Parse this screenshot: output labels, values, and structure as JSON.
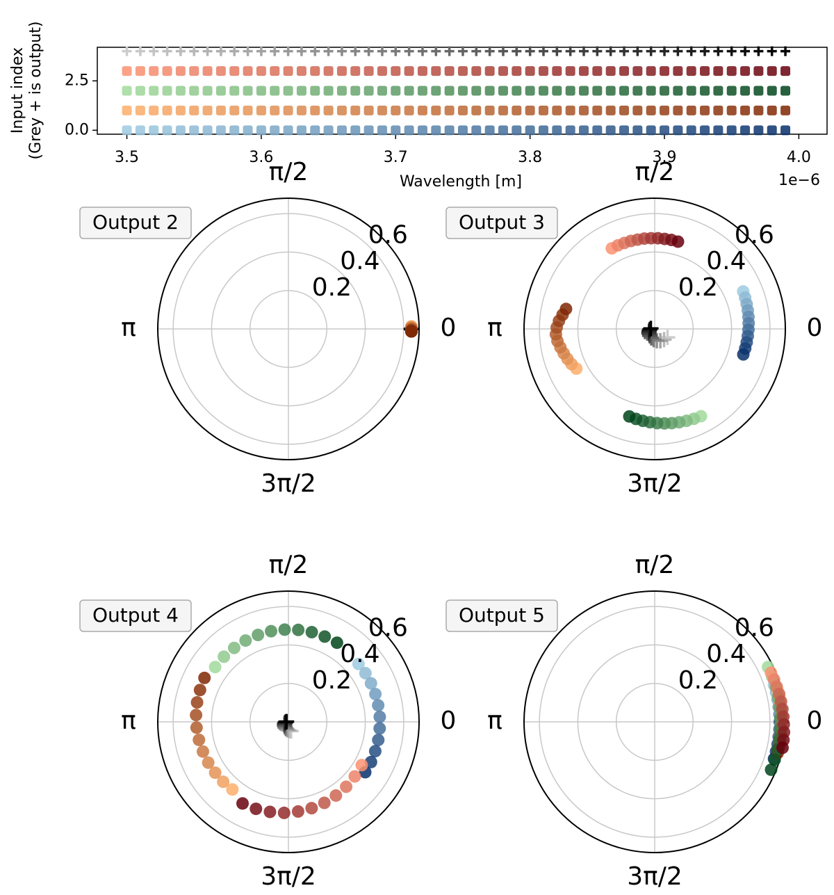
{
  "chart_data": [
    {
      "type": "scatter",
      "ylabel": [
        "Input index",
        "(Grey + is output)"
      ],
      "xlabel": "Wavelength [m]",
      "x_offset_label": "1e−6",
      "x": [
        3.5,
        3.51,
        3.52,
        3.53,
        3.54,
        3.55,
        3.56,
        3.57,
        3.58,
        3.59,
        3.6,
        3.61,
        3.62,
        3.63,
        3.64,
        3.65,
        3.66,
        3.67,
        3.68,
        3.69,
        3.7,
        3.71,
        3.72,
        3.73,
        3.74,
        3.75,
        3.76,
        3.77,
        3.78,
        3.79,
        3.8,
        3.81,
        3.82,
        3.83,
        3.84,
        3.85,
        3.86,
        3.87,
        3.88,
        3.89,
        3.9,
        3.91,
        3.92,
        3.93,
        3.94,
        3.95,
        3.96,
        3.97,
        3.98,
        3.99
      ],
      "xlim": [
        3.478,
        4.021
      ],
      "ylim": [
        -0.2,
        4.2
      ],
      "xticks": [
        3.5,
        3.6,
        3.7,
        3.8,
        3.9,
        {
          "value": 4,
          "label": "4.0"
        }
      ],
      "yticks": [
        {
          "value": 0,
          "label": "0.0"
        },
        2.5
      ],
      "series": [
        {
          "color": [
            "#9ecae1",
            "#08306b"
          ],
          "marker": "square",
          "values": [
            0,
            0,
            0,
            0,
            0,
            0,
            0,
            0,
            0,
            0,
            0,
            0,
            0,
            0,
            0,
            0,
            0,
            0,
            0,
            0,
            0,
            0,
            0,
            0,
            0,
            0,
            0,
            0,
            0,
            0,
            0,
            0,
            0,
            0,
            0,
            0,
            0,
            0,
            0,
            0,
            0,
            0,
            0,
            0,
            0,
            0,
            0,
            0,
            0,
            0
          ]
        },
        {
          "color": [
            "#fdae6b",
            "#7f2704"
          ],
          "marker": "square",
          "values": [
            1,
            1,
            1,
            1,
            1,
            1,
            1,
            1,
            1,
            1,
            1,
            1,
            1,
            1,
            1,
            1,
            1,
            1,
            1,
            1,
            1,
            1,
            1,
            1,
            1,
            1,
            1,
            1,
            1,
            1,
            1,
            1,
            1,
            1,
            1,
            1,
            1,
            1,
            1,
            1,
            1,
            1,
            1,
            1,
            1,
            1,
            1,
            1,
            1,
            1
          ]
        },
        {
          "color": [
            "#a1d99b",
            "#00441b"
          ],
          "marker": "square",
          "values": [
            2,
            2,
            2,
            2,
            2,
            2,
            2,
            2,
            2,
            2,
            2,
            2,
            2,
            2,
            2,
            2,
            2,
            2,
            2,
            2,
            2,
            2,
            2,
            2,
            2,
            2,
            2,
            2,
            2,
            2,
            2,
            2,
            2,
            2,
            2,
            2,
            2,
            2,
            2,
            2,
            2,
            2,
            2,
            2,
            2,
            2,
            2,
            2,
            2,
            2
          ]
        },
        {
          "color": [
            "#fc9272",
            "#67000d"
          ],
          "marker": "square",
          "values": [
            3,
            3,
            3,
            3,
            3,
            3,
            3,
            3,
            3,
            3,
            3,
            3,
            3,
            3,
            3,
            3,
            3,
            3,
            3,
            3,
            3,
            3,
            3,
            3,
            3,
            3,
            3,
            3,
            3,
            3,
            3,
            3,
            3,
            3,
            3,
            3,
            3,
            3,
            3,
            3,
            3,
            3,
            3,
            3,
            3,
            3,
            3,
            3,
            3,
            3
          ]
        },
        {
          "color": [
            "#cccccc",
            "#000000"
          ],
          "marker": "plus",
          "values": [
            4,
            4,
            4,
            4,
            4,
            4,
            4,
            4,
            4,
            4,
            4,
            4,
            4,
            4,
            4,
            4,
            4,
            4,
            4,
            4,
            4,
            4,
            4,
            4,
            4,
            4,
            4,
            4,
            4,
            4,
            4,
            4,
            4,
            4,
            4,
            4,
            4,
            4,
            4,
            4,
            4,
            4,
            4,
            4,
            4,
            4,
            4,
            4,
            4,
            4
          ]
        }
      ]
    },
    {
      "type": "polar",
      "title": "Output 2",
      "rlim": [
        0,
        0.68
      ],
      "rticks": [
        0.2,
        0.4,
        0.6
      ],
      "thetaticks": [
        0,
        {
          "value": 1.5708,
          "label": "π/2"
        },
        {
          "value": 3.1416,
          "label": "π"
        },
        {
          "value": 4.7124,
          "label": "3π/2"
        }
      ],
      "series": [
        {
          "color": [
            "#cccccc",
            "#000000"
          ],
          "marker": "plus",
          "r": [
            0.64,
            0.64,
            0.64,
            0.64,
            0.64,
            0.64,
            0.64,
            0.64,
            0.64,
            0.64,
            0.64
          ],
          "theta": [
            0,
            0,
            0,
            0,
            0,
            0,
            0,
            0,
            0,
            0,
            0
          ]
        },
        {
          "color": [
            "#9ecae1",
            "#08306b"
          ],
          "marker": "circle",
          "r": [
            0.64,
            0.64,
            0.64,
            0.64,
            0.64,
            0.64,
            0.64,
            0.64,
            0.64,
            0.64,
            0.64
          ],
          "theta": [
            0.02,
            0.016,
            0.012,
            0.008,
            0.004,
            0,
            -0.004,
            -0.008,
            -0.012,
            -0.016,
            -0.02
          ]
        },
        {
          "color": [
            "#a1d99b",
            "#00441b"
          ],
          "marker": "circle",
          "r": [
            0.64,
            0.64,
            0.64,
            0.64,
            0.64,
            0.64,
            0.64,
            0.64,
            0.64,
            0.64,
            0.64
          ],
          "theta": [
            0.02,
            0.016,
            0.012,
            0.008,
            0.004,
            0,
            -0.004,
            -0.008,
            -0.012,
            -0.016,
            -0.02
          ]
        },
        {
          "color": [
            "#fc9272",
            "#67000d"
          ],
          "marker": "circle",
          "r": [
            0.64,
            0.64,
            0.64,
            0.64,
            0.64,
            0.64,
            0.64,
            0.64,
            0.64,
            0.64,
            0.64
          ],
          "theta": [
            0.02,
            0.016,
            0.012,
            0.008,
            0.004,
            0,
            -0.004,
            -0.008,
            -0.012,
            -0.016,
            -0.02
          ]
        },
        {
          "color": [
            "#fdae6b",
            "#7f2704"
          ],
          "marker": "circle",
          "r": [
            0.64,
            0.64,
            0.64,
            0.64,
            0.64,
            0.64,
            0.64,
            0.64,
            0.64,
            0.64,
            0.64
          ],
          "theta": [
            0.02,
            0.016,
            0.012,
            0.008,
            0.004,
            0,
            -0.004,
            -0.008,
            -0.012,
            -0.016,
            -0.02
          ]
        }
      ]
    },
    {
      "type": "polar",
      "title": "Output 3",
      "rlim": [
        0,
        0.68
      ],
      "rticks": [
        0.2,
        0.4,
        0.6
      ],
      "thetaticks": [
        0,
        {
          "value": 1.5708,
          "label": "π/2"
        },
        {
          "value": 3.1416,
          "label": "π"
        },
        {
          "value": 4.7124,
          "label": "3π/2"
        }
      ],
      "series": [
        {
          "color": [
            "#cccccc",
            "#000000"
          ],
          "marker": "plus",
          "r": [
            0.08,
            0.074,
            0.068,
            0.062,
            0.056,
            0.05,
            0.044,
            0.038,
            0.032,
            0.026,
            0.02
          ],
          "theta": [
            5.7,
            5.43,
            5.16,
            4.89,
            4.62,
            4.35,
            4.08,
            3.81,
            3.54,
            3.27,
            3.0
          ]
        },
        {
          "color": [
            "#9ecae1",
            "#08306b"
          ],
          "marker": "circle",
          "r": [
            0.5,
            0.498,
            0.496,
            0.494,
            0.492,
            0.49,
            0.488,
            0.486,
            0.484,
            0.482,
            0.48
          ],
          "theta": [
            0.4,
            0.332,
            0.264,
            0.196,
            0.128,
            0.06,
            -0.008,
            -0.076,
            -0.144,
            -0.212,
            -0.28
          ]
        },
        {
          "color": [
            "#fdae6b",
            "#7f2704"
          ],
          "marker": "circle",
          "r": [
            0.457,
            0.47,
            0.48,
            0.49,
            0.5,
            0.51,
            0.515,
            0.51,
            0.5,
            0.485,
            0.473
          ],
          "theta": [
            3.61,
            3.541,
            3.472,
            3.403,
            3.334,
            3.265,
            3.196,
            3.127,
            3.058,
            2.989,
            2.92
          ]
        },
        {
          "color": [
            "#a1d99b",
            "#00441b"
          ],
          "marker": "circle",
          "r": [
            0.514,
            0.51,
            0.506,
            0.502,
            0.498,
            0.494,
            0.49,
            0.486,
            0.482,
            0.478,
            0.474
          ],
          "theta": [
            5.2,
            5.123,
            5.046,
            4.969,
            4.892,
            4.815,
            4.738,
            4.661,
            4.584,
            4.507,
            4.43
          ]
        },
        {
          "color": [
            "#fc9272",
            "#67000d"
          ],
          "marker": "circle",
          "r": [
            0.475,
            0.475,
            0.474,
            0.474,
            0.473,
            0.473,
            0.472,
            0.472,
            0.471,
            0.471,
            0.47
          ],
          "theta": [
            2.06,
            1.985,
            1.91,
            1.835,
            1.76,
            1.685,
            1.61,
            1.535,
            1.46,
            1.385,
            1.31
          ]
        }
      ]
    },
    {
      "type": "polar",
      "title": "Output 4",
      "rlim": [
        0,
        0.68
      ],
      "rticks": [
        0.2,
        0.4,
        0.6
      ],
      "thetaticks": [
        0,
        {
          "value": 1.5708,
          "label": "π/2"
        },
        {
          "value": 3.1416,
          "label": "π"
        },
        {
          "value": 4.7124,
          "label": "3π/2"
        }
      ],
      "series": [
        {
          "color": [
            "#cccccc",
            "#000000"
          ],
          "marker": "plus",
          "r": [
            0.05,
            0.046,
            0.042,
            0.038,
            0.034,
            0.03,
            0.026,
            0.022,
            0.018,
            0.014,
            0.01
          ],
          "theta": [
            5,
            4.8,
            4.6,
            4.4,
            4.2,
            4,
            3.8,
            3.6,
            3.4,
            3.2,
            3
          ]
        },
        {
          "color": [
            "#9ecae1",
            "#08306b"
          ],
          "marker": "circle",
          "r": [
            0.473,
            0.474,
            0.474,
            0.475,
            0.475,
            0.476,
            0.476,
            0.477,
            0.477,
            0.478,
            0.478
          ],
          "theta": [
            0.69,
            0.563,
            0.436,
            0.309,
            0.182,
            0.055,
            -0.072,
            -0.199,
            -0.326,
            -0.453,
            -0.58
          ]
        },
        {
          "color": [
            "#fdae6b",
            "#7f2704"
          ],
          "marker": "circle",
          "r": [
            0.457,
            0.461,
            0.464,
            0.468,
            0.471,
            0.475,
            0.479,
            0.482,
            0.486,
            0.489,
            0.493
          ],
          "theta": [
            4.02,
            3.884,
            3.748,
            3.612,
            3.476,
            3.34,
            3.204,
            3.068,
            2.932,
            2.796,
            2.66
          ]
        },
        {
          "color": [
            "#a1d99b",
            "#00441b"
          ],
          "marker": "circle",
          "r": [
            0.476,
            0.477,
            0.477,
            0.478,
            0.479,
            0.48,
            0.48,
            0.481,
            0.482,
            0.482,
            0.483
          ],
          "theta": [
            2.5,
            2.352,
            2.204,
            2.056,
            1.908,
            1.76,
            1.612,
            1.464,
            1.316,
            1.168,
            1.02
          ]
        },
        {
          "color": [
            "#fc9272",
            "#67000d"
          ],
          "marker": "circle",
          "r": [
            0.443,
            0.447,
            0.452,
            0.456,
            0.461,
            0.465,
            0.469,
            0.474,
            0.478,
            0.483,
            0.487
          ],
          "theta": [
            5.75,
            5.595,
            5.44,
            5.285,
            5.13,
            4.975,
            4.82,
            4.665,
            4.51,
            4.355,
            4.2
          ]
        }
      ]
    },
    {
      "type": "polar",
      "title": "Output 5",
      "rlim": [
        0,
        0.68
      ],
      "rticks": [
        0.2,
        0.4,
        0.6
      ],
      "thetaticks": [
        0,
        {
          "value": 1.5708,
          "label": "π/2"
        },
        {
          "value": 3.1416,
          "label": "π"
        },
        {
          "value": 4.7124,
          "label": "3π/2"
        }
      ],
      "series": [
        {
          "color": [
            "#cccccc",
            "#000000"
          ],
          "marker": "plus",
          "r": [
            0.66,
            0.66,
            0.66,
            0.66,
            0.66,
            0.66,
            0.66,
            0.66,
            0.66,
            0.66,
            0.66
          ],
          "theta": [
            0,
            0,
            0,
            0,
            0,
            0,
            0,
            0,
            0,
            0,
            0
          ]
        },
        {
          "color": [
            "#9ecae1",
            "#08306b"
          ],
          "marker": "circle",
          "r": [
            0.65,
            0.65,
            0.65,
            0.65,
            0.65,
            0.65,
            0.65,
            0.65,
            0.65,
            0.65,
            0.65
          ],
          "theta": [
            0.3,
            0.24,
            0.18,
            0.12,
            0.06,
            0,
            -0.06,
            -0.12,
            -0.18,
            -0.24,
            -0.3
          ]
        },
        {
          "color": [
            "#fdae6b",
            "#7f2704"
          ],
          "marker": "circle",
          "r": [
            0.66,
            0.66,
            0.66,
            0.66,
            0.66,
            0.66,
            0.66,
            0.66,
            0.66,
            0.66,
            0.66
          ],
          "theta": [
            0.25,
            0.2,
            0.15,
            0.1,
            0.05,
            0,
            -0.05,
            -0.1,
            -0.15,
            -0.2,
            -0.25
          ]
        },
        {
          "color": [
            "#a1d99b",
            "#00441b"
          ],
          "marker": "circle",
          "r": [
            0.655,
            0.655,
            0.655,
            0.655,
            0.655,
            0.655,
            0.655,
            0.655,
            0.655,
            0.655,
            0.655
          ],
          "theta": [
            0.45,
            0.366,
            0.282,
            0.198,
            0.114,
            0.03,
            -0.054,
            -0.138,
            -0.222,
            -0.306,
            -0.39
          ]
        },
        {
          "color": [
            "#fc9272",
            "#67000d"
          ],
          "marker": "circle",
          "r": [
            0.657,
            0.659,
            0.661,
            0.664,
            0.666,
            0.668,
            0.67,
            0.672,
            0.675,
            0.677,
            0.679
          ],
          "theta": [
            0.4,
            0.34,
            0.28,
            0.22,
            0.16,
            0.1,
            0.04,
            -0.02,
            -0.08,
            -0.14,
            -0.2
          ]
        }
      ]
    }
  ]
}
